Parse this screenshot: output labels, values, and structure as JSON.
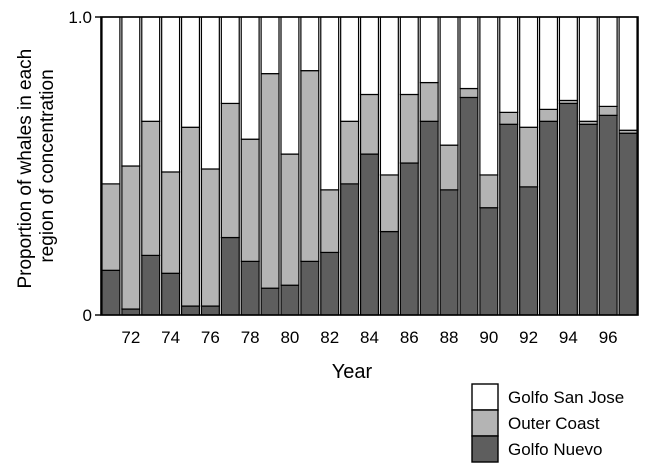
{
  "chart_data": {
    "type": "bar",
    "stacked": true,
    "xlabel": "Year",
    "ylabel_lines": [
      "Proportion of whales in each",
      "region of concentration"
    ],
    "ylim": [
      0,
      1
    ],
    "y_ticks": [
      {
        "value": 0,
        "label": "0"
      },
      {
        "value": 1,
        "label": "1.0"
      }
    ],
    "x_tick_labels": [
      "72",
      "74",
      "76",
      "78",
      "80",
      "82",
      "84",
      "86",
      "88",
      "90",
      "92",
      "94",
      "96"
    ],
    "categories": [
      "1971",
      "1972",
      "1973",
      "1974",
      "1975",
      "1976",
      "1977",
      "1978",
      "1979",
      "1980",
      "1981",
      "1982",
      "1983",
      "1984",
      "1985",
      "1986",
      "1987",
      "1988",
      "1989",
      "1990",
      "1991",
      "1992",
      "1993",
      "1994",
      "1995",
      "1996",
      "1997"
    ],
    "series": [
      {
        "name": "Golfo Nuevo",
        "color": "#5e5e5e",
        "values": [
          0.15,
          0.02,
          0.2,
          0.14,
          0.03,
          0.03,
          0.26,
          0.18,
          0.09,
          0.1,
          0.18,
          0.21,
          0.44,
          0.54,
          0.28,
          0.51,
          0.65,
          0.42,
          0.73,
          0.36,
          0.64,
          0.43,
          0.65,
          0.71,
          0.64,
          0.67,
          0.61
        ]
      },
      {
        "name": "Outer Coast",
        "color": "#b4b4b4",
        "values": [
          0.29,
          0.48,
          0.45,
          0.34,
          0.6,
          0.46,
          0.45,
          0.41,
          0.72,
          0.44,
          0.64,
          0.21,
          0.21,
          0.2,
          0.19,
          0.23,
          0.13,
          0.15,
          0.03,
          0.11,
          0.04,
          0.2,
          0.04,
          0.01,
          0.01,
          0.03,
          0.01
        ]
      },
      {
        "name": "Golfo San Jose",
        "color": "#ffffff",
        "values": [
          0.56,
          0.5,
          0.35,
          0.52,
          0.37,
          0.51,
          0.29,
          0.41,
          0.19,
          0.46,
          0.18,
          0.58,
          0.35,
          0.26,
          0.53,
          0.26,
          0.22,
          0.43,
          0.24,
          0.53,
          0.32,
          0.37,
          0.31,
          0.28,
          0.35,
          0.3,
          0.38
        ]
      }
    ],
    "legend_order": [
      "Golfo San Jose",
      "Outer Coast",
      "Golfo Nuevo"
    ],
    "legend_position": "bottom-right",
    "grid": false
  }
}
